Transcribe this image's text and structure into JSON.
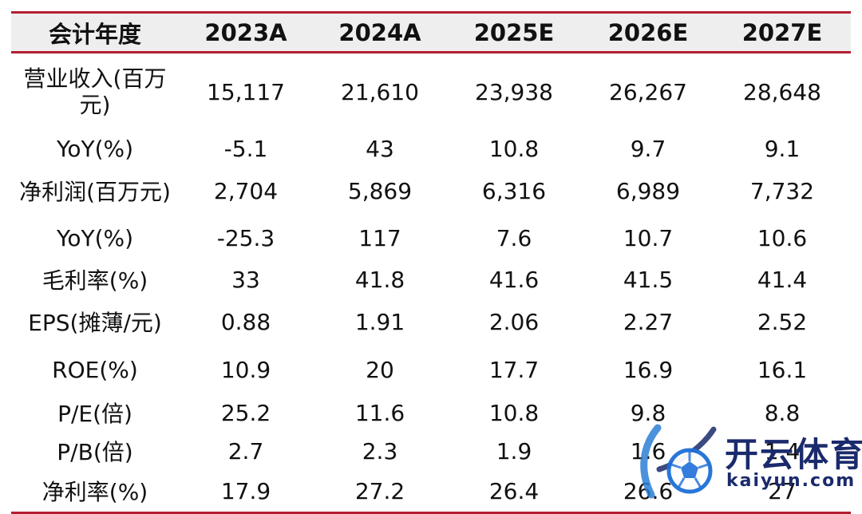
{
  "table": {
    "header": [
      "会计年度",
      "2023A",
      "2024A",
      "2025E",
      "2026E",
      "2027E"
    ],
    "rows": [
      {
        "label": "营业收入(百万元)",
        "label_lines": [
          "营业收入(百万",
          "元)"
        ],
        "values": [
          "15,117",
          "21,610",
          "23,938",
          "26,267",
          "28,648"
        ]
      },
      {
        "label": "YoY(%)",
        "values": [
          "-5.1",
          "43",
          "10.8",
          "9.7",
          "9.1"
        ]
      },
      {
        "label": "净利润(百万元)",
        "values": [
          "2,704",
          "5,869",
          "6,316",
          "6,989",
          "7,732"
        ]
      },
      {
        "label": "YoY(%)",
        "values": [
          "-25.3",
          "117",
          "7.6",
          "10.7",
          "10.6"
        ]
      },
      {
        "label": "毛利率(%)",
        "values": [
          "33",
          "41.8",
          "41.6",
          "41.5",
          "41.4"
        ]
      },
      {
        "label": "EPS(摊薄/元)",
        "values": [
          "0.88",
          "1.91",
          "2.06",
          "2.27",
          "2.52"
        ]
      },
      {
        "label": "ROE(%)",
        "values": [
          "10.9",
          "20",
          "17.7",
          "16.9",
          "16.1"
        ]
      },
      {
        "label": "P/E(倍)",
        "values": [
          "25.2",
          "11.6",
          "10.8",
          "9.8",
          "8.8"
        ]
      },
      {
        "label": "P/B(倍)",
        "values": [
          "2.7",
          "2.3",
          "1.9",
          "1.6",
          "1.4"
        ]
      },
      {
        "label": "净利率(%)",
        "values": [
          "17.9",
          "27.2",
          "26.4",
          "26.6",
          "27"
        ]
      }
    ]
  },
  "watermark": {
    "brand": "开云体育",
    "sub": "kaiyun.com",
    "colors": {
      "primary": "#1a2a6c",
      "accent": "#2b7fd6",
      "ball": "#1e6fd8"
    }
  },
  "colors": {
    "rule": "#b41e32",
    "header_bg": "#eeeeee",
    "text": "#111111"
  }
}
